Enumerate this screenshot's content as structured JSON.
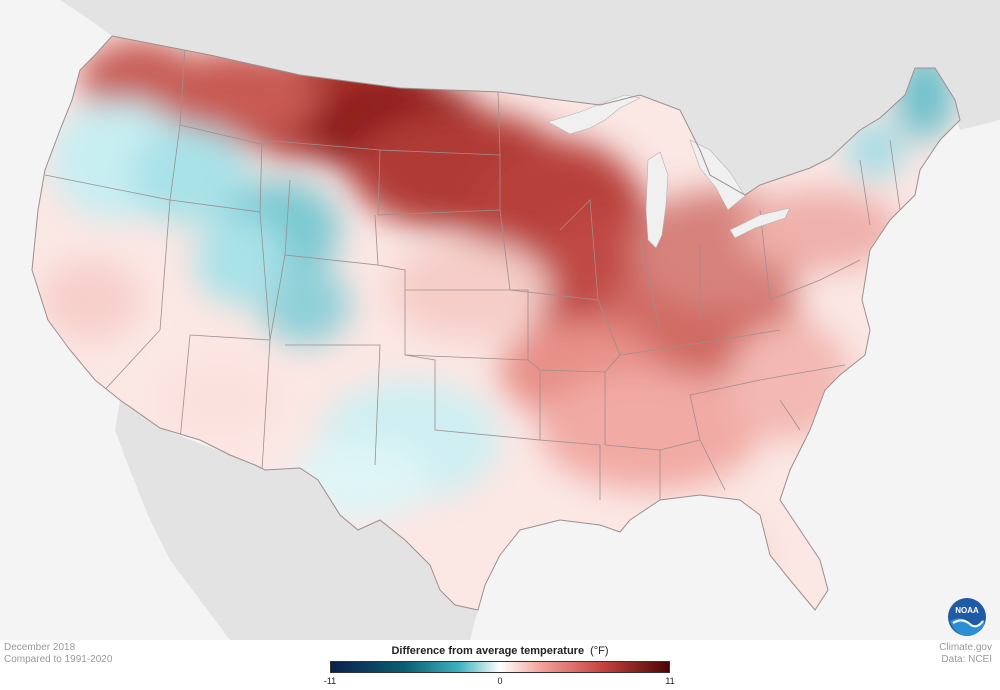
{
  "map": {
    "subject": "Contiguous United States",
    "colors": {
      "background": "#f4f4f4",
      "land_surround": "#e3e3e3",
      "state_border": "#9c8f8f",
      "water": "#f4f4f4"
    }
  },
  "captions": {
    "period": "December 2018",
    "baseline": "Compared to 1991-2020",
    "source_site": "Climate.gov",
    "data_source": "Data: NCEI"
  },
  "legend": {
    "title": "Difference from average temperature",
    "unit": "(°F)",
    "min": "-11",
    "mid": "0",
    "max": "11",
    "colors": [
      "#0b1f4d",
      "#0a5f72",
      "#3eb3c0",
      "#ffffff",
      "#f3a39b",
      "#c9433f",
      "#4a0505"
    ]
  },
  "logo": {
    "text": "NOAA",
    "icon": "noaa-logo-icon",
    "colors": {
      "circle": "#1f5aa6",
      "wave": "#ffffff"
    }
  }
}
